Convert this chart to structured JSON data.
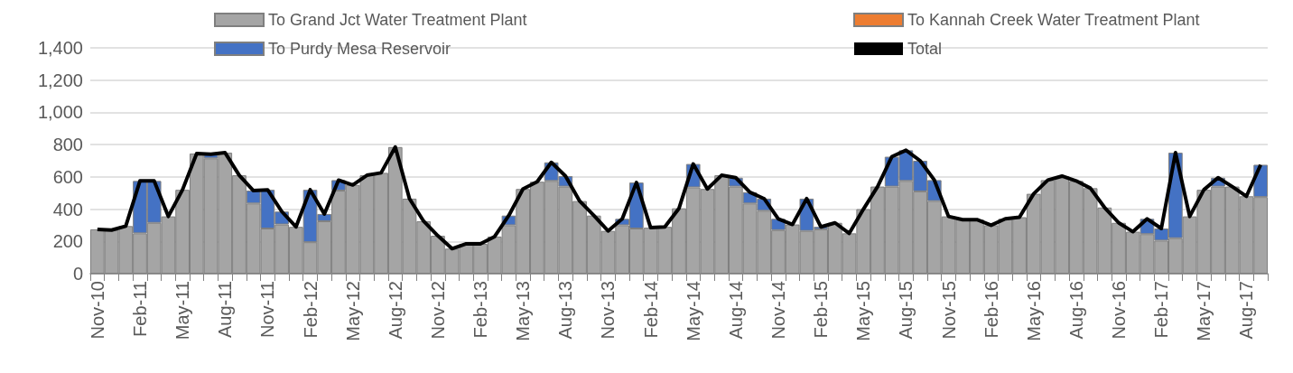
{
  "chart_data": {
    "type": "bar",
    "stacked": true,
    "legend": "top",
    "grid": "y",
    "marker": "none",
    "categories": [
      "Nov-10",
      null,
      null,
      "Feb-11",
      null,
      null,
      "May-11",
      null,
      null,
      "Aug-11",
      null,
      null,
      "Nov-11",
      null,
      null,
      "Feb-12",
      null,
      null,
      "May-12",
      null,
      null,
      "Aug-12",
      null,
      null,
      "Nov-12",
      null,
      null,
      "Feb-13",
      null,
      null,
      "May-13",
      null,
      null,
      "Aug-13",
      null,
      null,
      "Nov-13",
      null,
      null,
      "Feb-14",
      null,
      null,
      "May-14",
      null,
      null,
      "Aug-14",
      null,
      null,
      "Nov-14",
      null,
      null,
      "Feb-15",
      null,
      null,
      "May-15",
      null,
      null,
      "Aug-15",
      null,
      null,
      "Nov-15",
      null,
      null,
      "Feb-16",
      null,
      null,
      "May-16",
      null,
      null,
      "Aug-16",
      null,
      null,
      "Nov-16",
      null,
      null,
      "Feb-17",
      null,
      null,
      "May-17",
      null,
      null,
      "Aug-17",
      null
    ],
    "ylim": [
      0,
      1400
    ],
    "yticks": [
      0,
      200,
      400,
      600,
      800,
      {
        "value": 1000,
        "label": "1,000"
      },
      {
        "value": 1200,
        "label": "1,200"
      },
      {
        "value": 1400,
        "label": "1,400"
      }
    ],
    "series": [
      {
        "name": "To Grand Jct Water Treatment Plant",
        "color": "#a5a5a5",
        "values": [
          275,
          270,
          295,
          250,
          315,
          355,
          520,
          745,
          715,
          750,
          610,
          435,
          280,
          305,
          290,
          195,
          325,
          515,
          550,
          610,
          625,
          785,
          465,
          325,
          235,
          155,
          185,
          185,
          230,
          300,
          525,
          570,
          575,
          540,
          450,
          360,
          265,
          300,
          280,
          285,
          290,
          405,
          535,
          525,
          610,
          540,
          435,
          390,
          270,
          305,
          265,
          275,
          315,
          250,
          400,
          540,
          540,
          575,
          510,
          450,
          355,
          335,
          335,
          300,
          340,
          350,
          495,
          580,
          605,
          575,
          530,
          410,
          315,
          260,
          245,
          205,
          220,
          355,
          520,
          540,
          540,
          480,
          475
        ]
      },
      {
        "name": "To Kannah Creek Water Treatment Plant",
        "color": "#ed7d31",
        "values": [
          0,
          0,
          0,
          0,
          0,
          0,
          0,
          0,
          0,
          0,
          0,
          0,
          0,
          0,
          0,
          0,
          0,
          0,
          0,
          0,
          0,
          0,
          0,
          0,
          0,
          0,
          0,
          0,
          0,
          0,
          0,
          0,
          0,
          0,
          0,
          0,
          0,
          0,
          0,
          0,
          0,
          0,
          0,
          0,
          0,
          0,
          0,
          0,
          0,
          0,
          0,
          0,
          0,
          0,
          0,
          0,
          0,
          0,
          0,
          0,
          0,
          0,
          0,
          0,
          0,
          0,
          0,
          0,
          0,
          0,
          0,
          0,
          0,
          0,
          0,
          0,
          0,
          0,
          0,
          0,
          0,
          0,
          0
        ]
      },
      {
        "name": "To Purdy Mesa Reservoir",
        "color": "#4472c4",
        "values": [
          0,
          0,
          0,
          325,
          260,
          0,
          0,
          0,
          25,
          0,
          0,
          80,
          240,
          80,
          0,
          325,
          45,
          65,
          0,
          0,
          0,
          0,
          0,
          0,
          0,
          0,
          0,
          0,
          0,
          60,
          0,
          0,
          115,
          65,
          0,
          0,
          0,
          40,
          285,
          0,
          0,
          0,
          145,
          0,
          0,
          55,
          70,
          75,
          70,
          0,
          200,
          15,
          0,
          0,
          0,
          0,
          185,
          190,
          190,
          130,
          0,
          0,
          0,
          0,
          0,
          0,
          0,
          0,
          0,
          0,
          0,
          0,
          0,
          0,
          95,
          75,
          530,
          0,
          0,
          55,
          0,
          0,
          200
        ]
      },
      {
        "name": "Total",
        "type": "line",
        "color": "#000000",
        "values": [
          275,
          270,
          295,
          575,
          575,
          355,
          520,
          745,
          740,
          750,
          610,
          515,
          520,
          385,
          290,
          520,
          370,
          580,
          550,
          610,
          625,
          785,
          465,
          325,
          235,
          155,
          185,
          185,
          230,
          360,
          525,
          570,
          690,
          605,
          450,
          360,
          265,
          340,
          565,
          285,
          290,
          405,
          680,
          525,
          610,
          595,
          505,
          465,
          340,
          305,
          465,
          290,
          315,
          250,
          400,
          540,
          725,
          765,
          700,
          580,
          355,
          335,
          335,
          300,
          340,
          350,
          495,
          580,
          605,
          575,
          530,
          410,
          315,
          260,
          340,
          280,
          750,
          355,
          520,
          595,
          540,
          480,
          675
        ]
      }
    ]
  }
}
